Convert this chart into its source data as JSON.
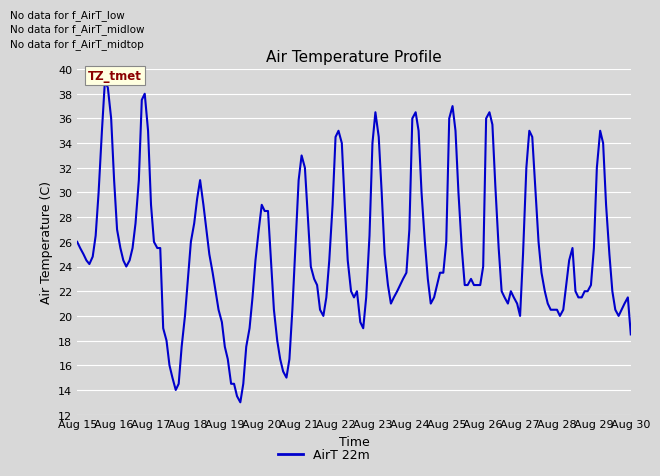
{
  "title": "Air Temperature Profile",
  "xlabel": "Time",
  "ylabel": "Air Temperature (C)",
  "ylim": [
    12,
    40
  ],
  "yticks": [
    12,
    14,
    16,
    18,
    20,
    22,
    24,
    26,
    28,
    30,
    32,
    34,
    36,
    38,
    40
  ],
  "background_color": "#d8d8d8",
  "plot_bg_color": "#d8d8d8",
  "line_color": "#0000cc",
  "legend_label": "AirT 22m",
  "no_data_texts": [
    "No data for f_AirT_low",
    "No data for f_AirT_midlow",
    "No data for f_AirT_midtop"
  ],
  "tz_tmet_text": "TZ_tmet",
  "x_tick_labels": [
    "Aug 15",
    "Aug 16",
    "Aug 17",
    "Aug 18",
    "Aug 19",
    "Aug 20",
    "Aug 21",
    "Aug 22",
    "Aug 23",
    "Aug 24",
    "Aug 25",
    "Aug 26",
    "Aug 27",
    "Aug 28",
    "Aug 29",
    "Aug 30"
  ],
  "x_tick_positions": [
    0,
    1,
    2,
    3,
    4,
    5,
    6,
    7,
    8,
    9,
    10,
    11,
    12,
    13,
    14,
    15
  ],
  "data_x": [
    0.0,
    0.08,
    0.17,
    0.25,
    0.33,
    0.42,
    0.5,
    0.58,
    0.67,
    0.75,
    0.83,
    0.92,
    1.0,
    1.08,
    1.17,
    1.25,
    1.33,
    1.42,
    1.5,
    1.58,
    1.67,
    1.75,
    1.83,
    1.92,
    2.0,
    2.08,
    2.17,
    2.25,
    2.33,
    2.42,
    2.5,
    2.58,
    2.67,
    2.75,
    2.83,
    2.92,
    3.0,
    3.08,
    3.17,
    3.25,
    3.33,
    3.42,
    3.5,
    3.58,
    3.67,
    3.75,
    3.83,
    3.92,
    4.0,
    4.08,
    4.17,
    4.25,
    4.33,
    4.42,
    4.5,
    4.58,
    4.67,
    4.75,
    4.83,
    4.92,
    5.0,
    5.08,
    5.17,
    5.25,
    5.33,
    5.42,
    5.5,
    5.58,
    5.67,
    5.75,
    5.83,
    5.92,
    6.0,
    6.08,
    6.17,
    6.25,
    6.33,
    6.42,
    6.5,
    6.58,
    6.67,
    6.75,
    6.83,
    6.92,
    7.0,
    7.08,
    7.17,
    7.25,
    7.33,
    7.42,
    7.5,
    7.58,
    7.67,
    7.75,
    7.83,
    7.92,
    8.0,
    8.08,
    8.17,
    8.25,
    8.33,
    8.42,
    8.5,
    8.58,
    8.67,
    8.75,
    8.83,
    8.92,
    9.0,
    9.08,
    9.17,
    9.25,
    9.33,
    9.42,
    9.5,
    9.58,
    9.67,
    9.75,
    9.83,
    9.92,
    10.0,
    10.08,
    10.17,
    10.25,
    10.33,
    10.42,
    10.5,
    10.58,
    10.67,
    10.75,
    10.83,
    10.92,
    11.0,
    11.08,
    11.17,
    11.25,
    11.33,
    11.42,
    11.5,
    11.58,
    11.67,
    11.75,
    11.83,
    11.92,
    12.0,
    12.08,
    12.17,
    12.25,
    12.33,
    12.42,
    12.5,
    12.58,
    12.67,
    12.75,
    12.83,
    12.92,
    13.0,
    13.08,
    13.17,
    13.25,
    13.33,
    13.42,
    13.5,
    13.58,
    13.67,
    13.75,
    13.83,
    13.92,
    14.0,
    14.08,
    14.17,
    14.25,
    14.33,
    14.42,
    14.5,
    14.58,
    14.67,
    14.75,
    14.83,
    14.92,
    15.0
  ],
  "data_y": [
    26.0,
    25.5,
    25.0,
    24.5,
    24.2,
    24.8,
    26.5,
    30.0,
    35.0,
    39.0,
    38.5,
    36.0,
    31.0,
    27.0,
    25.5,
    24.5,
    24.0,
    24.5,
    25.5,
    27.5,
    31.0,
    37.5,
    38.0,
    35.0,
    29.0,
    26.0,
    25.5,
    25.5,
    19.0,
    18.0,
    16.0,
    15.0,
    14.0,
    14.5,
    17.5,
    20.0,
    23.0,
    26.0,
    27.5,
    29.5,
    31.0,
    29.0,
    27.0,
    25.0,
    23.5,
    22.0,
    20.5,
    19.5,
    17.5,
    16.5,
    14.5,
    14.5,
    13.5,
    13.0,
    14.5,
    17.5,
    19.0,
    21.5,
    24.5,
    27.0,
    29.0,
    28.5,
    28.5,
    24.5,
    20.5,
    18.0,
    16.5,
    15.5,
    15.0,
    16.5,
    20.5,
    26.0,
    31.0,
    33.0,
    32.0,
    28.0,
    24.0,
    23.0,
    22.5,
    20.5,
    20.0,
    21.5,
    24.5,
    29.0,
    34.5,
    35.0,
    34.0,
    29.0,
    24.5,
    22.0,
    21.5,
    22.0,
    19.5,
    19.0,
    21.5,
    26.5,
    34.0,
    36.5,
    34.5,
    30.0,
    25.0,
    22.5,
    21.0,
    21.5,
    22.0,
    22.5,
    23.0,
    23.5,
    27.0,
    36.0,
    36.5,
    35.0,
    30.0,
    26.0,
    23.0,
    21.0,
    21.5,
    22.5,
    23.5,
    23.5,
    26.0,
    36.0,
    37.0,
    35.0,
    30.0,
    25.5,
    22.5,
    22.5,
    23.0,
    22.5,
    22.5,
    22.5,
    24.0,
    36.0,
    36.5,
    35.5,
    30.5,
    25.5,
    22.0,
    21.5,
    21.0,
    22.0,
    21.5,
    21.0,
    20.0,
    25.0,
    32.0,
    35.0,
    34.5,
    30.0,
    26.0,
    23.5,
    22.0,
    21.0,
    20.5,
    20.5,
    20.5,
    20.0,
    20.5,
    22.5,
    24.5,
    25.5,
    22.0,
    21.5,
    21.5,
    22.0,
    22.0,
    22.5,
    25.5,
    32.0,
    35.0,
    34.0,
    29.0,
    25.0,
    22.0,
    20.5,
    20.0,
    20.5,
    21.0,
    21.5,
    18.5
  ]
}
